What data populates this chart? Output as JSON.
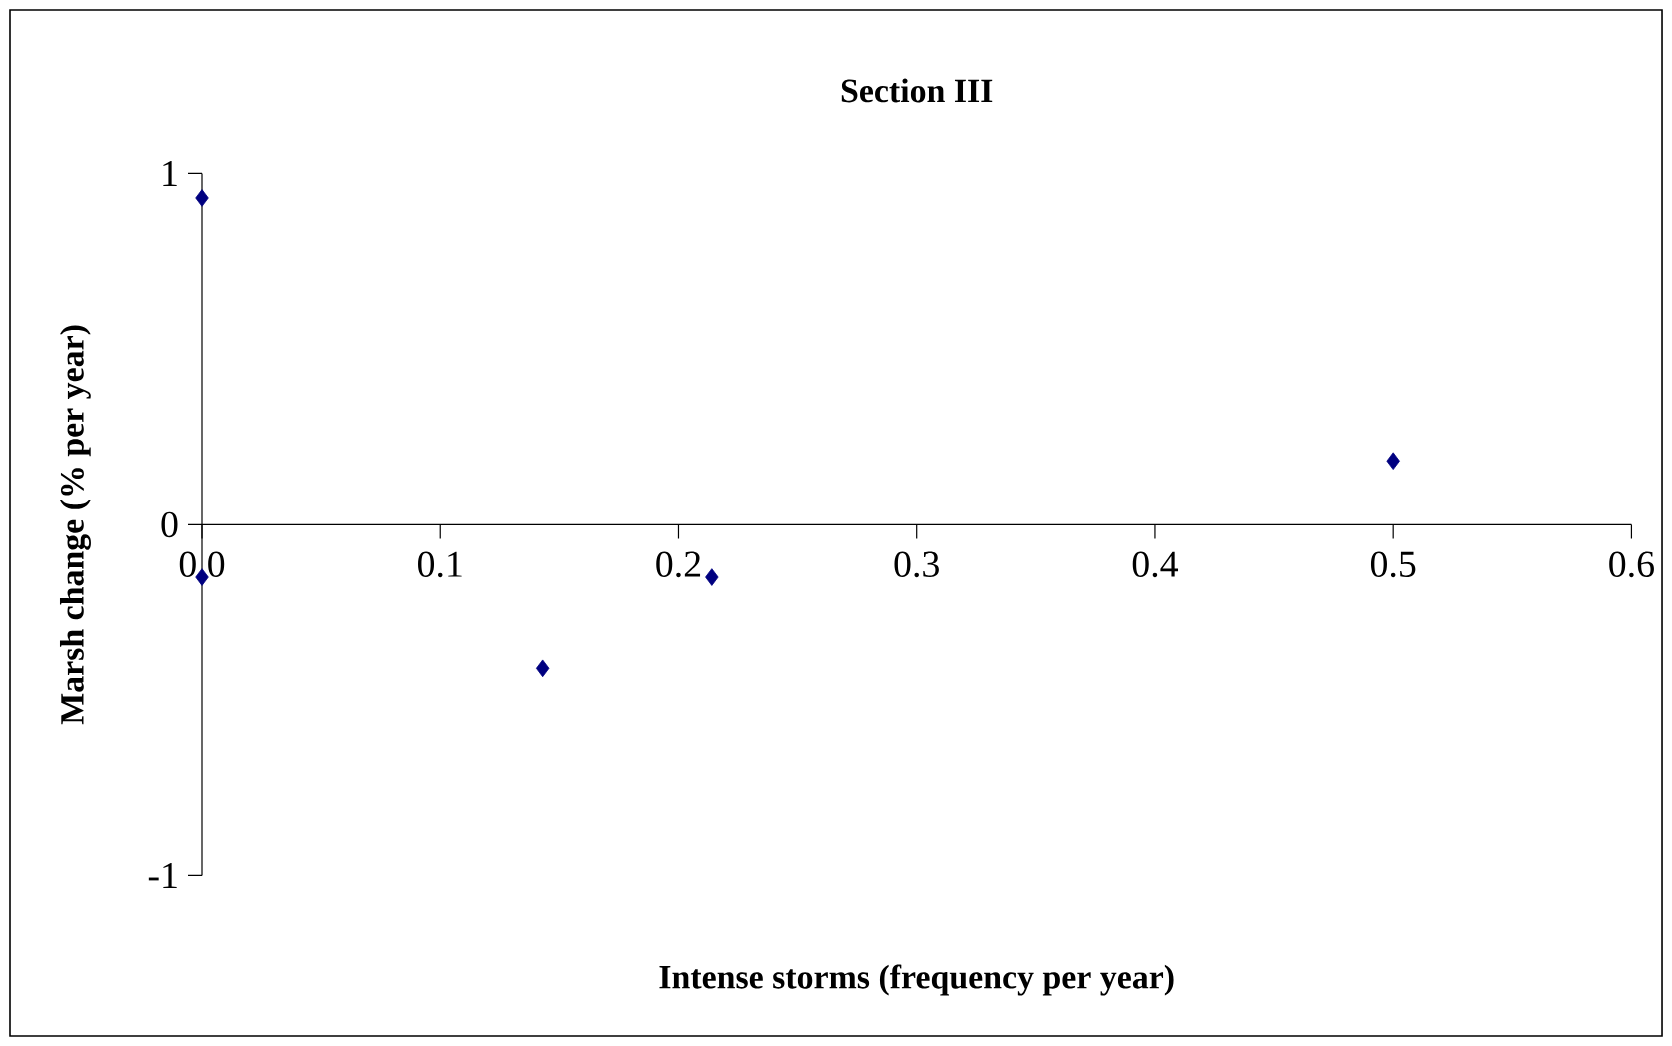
{
  "chart_data": {
    "type": "scatter",
    "title": "Section III",
    "xlabel": "Intense storms (frequency per year)",
    "ylabel": "Marsh change (% per year)",
    "x": [
      0,
      0,
      0.143,
      0.214,
      0.5
    ],
    "series": [
      {
        "color": "#000080",
        "values": [
          0.93,
          -0.15,
          -0.41,
          -0.15,
          0.18
        ]
      }
    ],
    "xlim": [
      0,
      0.6
    ],
    "ylim": [
      -1,
      1
    ],
    "xticks": [
      {
        "value": 0,
        "label": "0.0"
      },
      0.1,
      0.2,
      0.3,
      0.4,
      0.5,
      0.6
    ],
    "yticks": [
      -1,
      0,
      1
    ],
    "marker": "diamond"
  }
}
